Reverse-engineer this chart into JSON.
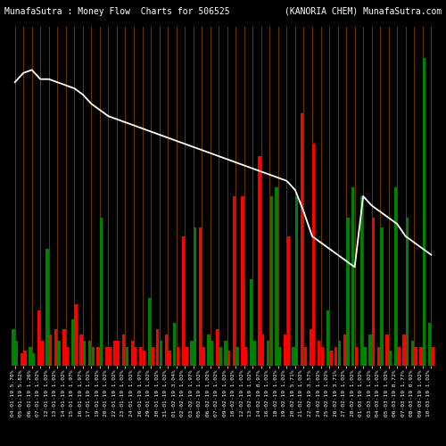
{
  "title_left": "MunafaSutra : Money Flow  Charts for 506525",
  "title_right": "(KANORIA CHEM) MunafaSutra.com",
  "background_color": "#000000",
  "grid_color": "#8B4500",
  "line_color": "#ffffff",
  "categories": [
    "04-01-19 5.76%",
    "05-01-19 5.82%",
    "06-01-19 1.26%",
    "07-01-19 1.02%",
    "12-01-19 1.02%",
    "13-01-19 1.02%",
    "14-01-19 1.02%",
    "15-01-19 1.97%",
    "16-01-19 1.97%",
    "17-01-19 1.02%",
    "19-01-19 1.02%",
    "20-01-19 1.02%",
    "22-01-19 1.02%",
    "23-01-19 1.02%",
    "24-01-19 1.02%",
    "26-01-19 1.97%",
    "29-01-19 1.02%",
    "30-01-19 1.02%",
    "31-01-19 1.02%",
    "01-02-19 3.04%",
    "02-02-19 1.02%",
    "03-02-19 1.97%",
    "05-02-19 1.02%",
    "06-02-19 1.02%",
    "07-02-19 1.02%",
    "09-02-19 1.02%",
    "10-02-19 1.02%",
    "12-02-19 1.02%",
    "13-02-19 1.02%",
    "14-02-19 0.97%",
    "16-02-19 1.02%",
    "18-02-19 1.02%",
    "19-02-19 1.02%",
    "20-02-19 5.71%",
    "21-02-19 1.02%",
    "22-02-19 3.57%",
    "24-02-19 1.02%",
    "25-02-19 1.02%",
    "26-02-19 3.71%",
    "27-02-19 1.02%",
    "28-02-19 1.02%",
    "01-03-19 1.02%",
    "03-03-19 1.02%",
    "04-03-19 1.02%",
    "05-03-19 1.02%",
    "06-03-19 0.72%",
    "07-03-19 1.77%",
    "08-03-19 0.92%",
    "09-03-19 1.02%",
    "10-03-19 1.02%"
  ],
  "bar1_values": [
    12,
    4,
    6,
    18,
    38,
    12,
    12,
    15,
    10,
    8,
    6,
    6,
    8,
    10,
    8,
    6,
    22,
    12,
    10,
    14,
    42,
    8,
    45,
    10,
    12,
    8,
    55,
    55,
    28,
    68,
    8,
    58,
    10,
    6,
    82,
    12,
    8,
    18,
    6,
    10,
    58,
    55,
    10,
    6,
    10,
    58,
    10,
    8,
    6,
    14
  ],
  "bar2_values": [
    8,
    5,
    4,
    8,
    10,
    8,
    6,
    20,
    8,
    6,
    48,
    6,
    8,
    6,
    6,
    5,
    6,
    8,
    5,
    6,
    6,
    45,
    6,
    8,
    6,
    5,
    6,
    6,
    8,
    10,
    55,
    6,
    42,
    55,
    6,
    72,
    6,
    5,
    8,
    48,
    6,
    6,
    48,
    45,
    5,
    6,
    48,
    6,
    100,
    6
  ],
  "bar1_colors": [
    "green",
    "red",
    "green",
    "red",
    "green",
    "red",
    "red",
    "green",
    "red",
    "green",
    "red",
    "red",
    "red",
    "red",
    "red",
    "red",
    "green",
    "red",
    "red",
    "green",
    "red",
    "green",
    "red",
    "green",
    "red",
    "green",
    "red",
    "red",
    "green",
    "red",
    "green",
    "green",
    "red",
    "green",
    "red",
    "red",
    "red",
    "green",
    "red",
    "red",
    "green",
    "green",
    "green",
    "red",
    "red",
    "green",
    "red",
    "green",
    "red",
    "green"
  ],
  "bar2_colors": [
    "green",
    "red",
    "green",
    "red",
    "red",
    "green",
    "red",
    "red",
    "green",
    "green",
    "green",
    "red",
    "red",
    "green",
    "red",
    "red",
    "red",
    "green",
    "red",
    "red",
    "red",
    "green",
    "red",
    "green",
    "green",
    "red",
    "green",
    "red",
    "green",
    "red",
    "green",
    "green",
    "red",
    "green",
    "red",
    "red",
    "red",
    "red",
    "green",
    "green",
    "red",
    "green",
    "red",
    "green",
    "green",
    "red",
    "green",
    "red",
    "green",
    "red"
  ],
  "line_values": [
    92,
    95,
    96,
    93,
    93,
    92,
    91,
    90,
    88,
    85,
    83,
    81,
    80,
    79,
    78,
    77,
    76,
    75,
    74,
    73,
    72,
    71,
    70,
    69,
    68,
    67,
    66,
    65,
    64,
    63,
    62,
    61,
    60,
    57,
    50,
    42,
    40,
    38,
    36,
    34,
    32,
    55,
    52,
    50,
    48,
    46,
    42,
    40,
    38,
    36
  ],
  "ylim_max": 110,
  "title_fontsize": 7,
  "label_fontsize": 4.5
}
